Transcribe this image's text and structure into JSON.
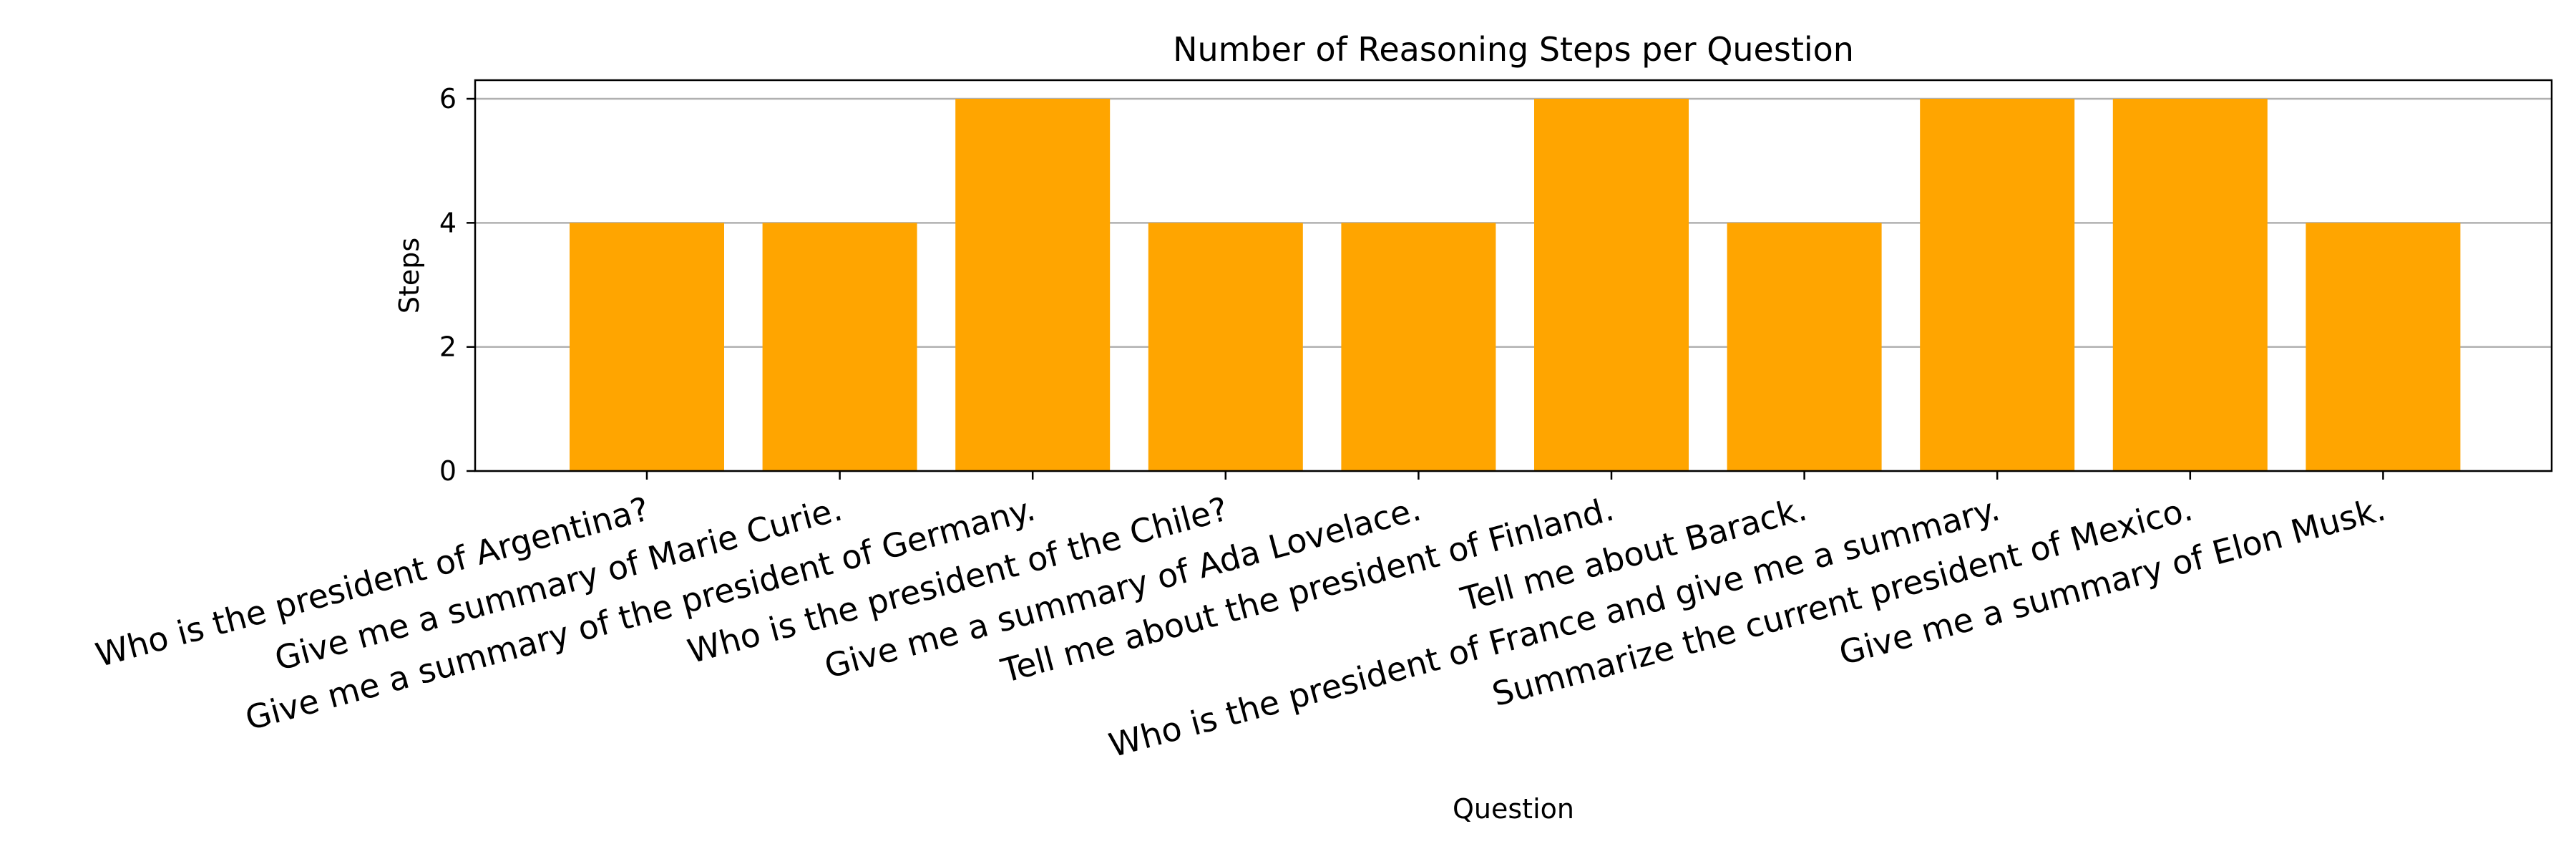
{
  "chart_data": {
    "type": "bar",
    "title": "Number of Reasoning Steps per Question",
    "xlabel": "Question",
    "ylabel": "Steps",
    "ylim": [
      0,
      6.3
    ],
    "yticks": [
      0,
      2,
      4,
      6
    ],
    "grid": "y",
    "bar_color": "#FFA500",
    "categories": [
      "Who is the president of Argentina?",
      "Give me a summary of Marie Curie.",
      "Give me a summary of the president of Germany.",
      "Who is the president of the Chile?",
      "Give me a summary of Ada Lovelace.",
      "Tell me about the president of Finland.",
      "Tell me about Barack.",
      "Who is the president of France and give me a summary.",
      "Summarize the current president of Mexico.",
      "Give me a summary of Elon Musk."
    ],
    "values": [
      4,
      4,
      6,
      4,
      4,
      6,
      4,
      6,
      6,
      4
    ]
  }
}
